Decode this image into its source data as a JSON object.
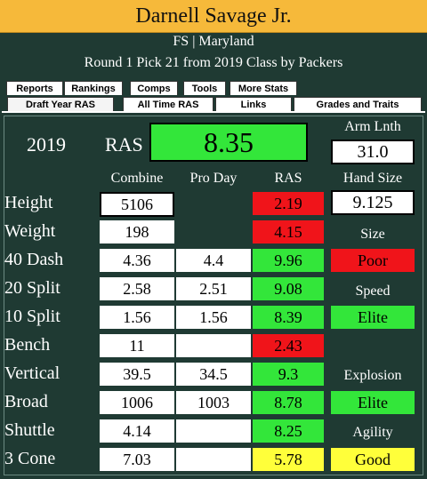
{
  "header": {
    "title": "Darnell Savage Jr."
  },
  "player": {
    "position_school": "FS | Maryland",
    "draft_info": "Round 1 Pick 21 from 2019 Class by Packers"
  },
  "tabs_row1": [
    "Reports",
    "Rankings",
    "Comps",
    "Tools",
    "More Stats"
  ],
  "tabs_row2": [
    "Draft Year RAS",
    "All Time RAS",
    "Links",
    "Grades and Traits"
  ],
  "summary": {
    "year": "2019",
    "ras_label": "RAS",
    "ras_value": "8.35"
  },
  "columns": {
    "combine": "Combine",
    "pro_day": "Pro Day",
    "ras": "RAS"
  },
  "rows": [
    {
      "label": "Height",
      "combine": "5106",
      "pro_day": "",
      "ras": "2.19",
      "ras_color": "#f0141a"
    },
    {
      "label": "Weight",
      "combine": "198",
      "pro_day": "",
      "ras": "4.15",
      "ras_color": "#f0141a"
    },
    {
      "label": "40 Dash",
      "combine": "4.36",
      "pro_day": "4.4",
      "ras": "9.96",
      "ras_color": "#33e63a"
    },
    {
      "label": "20 Split",
      "combine": "2.58",
      "pro_day": "2.51",
      "ras": "9.08",
      "ras_color": "#33e63a"
    },
    {
      "label": "10 Split",
      "combine": "1.56",
      "pro_day": "1.56",
      "ras": "8.39",
      "ras_color": "#33e63a"
    },
    {
      "label": "Bench",
      "combine": "11",
      "pro_day": "",
      "ras": "2.43",
      "ras_color": "#f0141a"
    },
    {
      "label": "Vertical",
      "combine": "39.5",
      "pro_day": "34.5",
      "ras": "9.3",
      "ras_color": "#33e63a"
    },
    {
      "label": "Broad",
      "combine": "1006",
      "pro_day": "1003",
      "ras": "8.78",
      "ras_color": "#33e63a"
    },
    {
      "label": "Shuttle",
      "combine": "4.14",
      "pro_day": "",
      "ras": "8.25",
      "ras_color": "#33e63a"
    },
    {
      "label": "3 Cone",
      "combine": "7.03",
      "pro_day": "",
      "ras": "5.78",
      "ras_color": "#ffff3a"
    }
  ],
  "side": {
    "arm_length_label": "Arm Lnth",
    "arm_length": "31.0",
    "hand_size_label": "Hand Size",
    "hand_size": "9.125",
    "size_label": "Size",
    "size_grade": "Poor",
    "size_color": "#f0141a",
    "speed_label": "Speed",
    "speed_grade": "Elite",
    "speed_color": "#33e63a",
    "explosion_label": "Explosion",
    "explosion_grade": "Elite",
    "explosion_color": "#33e63a",
    "agility_label": "Agility",
    "agility_grade": "Good",
    "agility_color": "#ffff3a"
  }
}
